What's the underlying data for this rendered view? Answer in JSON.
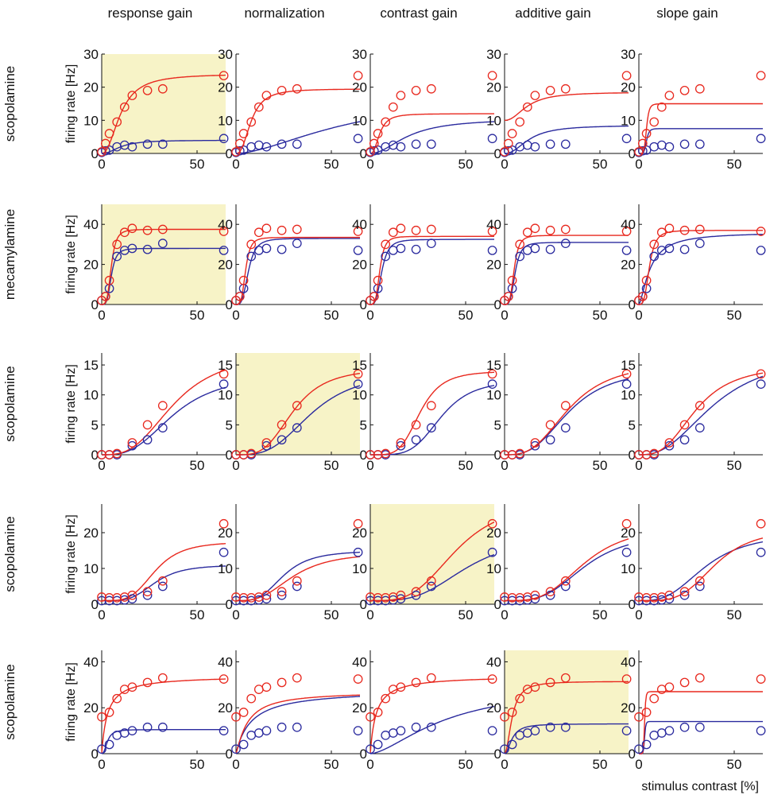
{
  "figure": {
    "column_titles": [
      "response gain",
      "normalization",
      "contrast gain",
      "additive gain",
      "slope gain"
    ],
    "row_labels": [
      "scopolamine",
      "mecamylamine",
      "scopolamine",
      "scopolamine",
      "scopolamine"
    ],
    "ylabel": "firing rate [Hz]",
    "xlabel": "stimulus contrast [%]",
    "colors": {
      "condition_a": "#e8281e",
      "condition_b": "#2a2a9e",
      "highlight": "#f7f3c7",
      "axis": "#111111"
    }
  },
  "chart_data": {
    "type": "scatter",
    "x_label": "stimulus contrast [%]",
    "y_label": "firing rate [Hz]",
    "xlim": [
      0,
      65
    ],
    "xticks": [
      0,
      50
    ],
    "x": [
      0,
      2,
      4,
      6,
      8,
      12,
      16,
      24,
      32,
      64
    ],
    "model_names": [
      "response gain",
      "normalization",
      "contrast gain",
      "additive gain",
      "slope gain"
    ],
    "rows": [
      {
        "label": "scopolamine",
        "ylim": [
          0,
          30
        ],
        "yticks": [
          0,
          10,
          20,
          30
        ],
        "best_model": 0,
        "points_a": [
          [
            0,
            0.5
          ],
          [
            2,
            3
          ],
          [
            4,
            6
          ],
          [
            8,
            9.5
          ],
          [
            12,
            14
          ],
          [
            16,
            17.5
          ],
          [
            24,
            19
          ],
          [
            32,
            19.5
          ],
          [
            64,
            23.5
          ]
        ],
        "points_b": [
          [
            0,
            0.3
          ],
          [
            2,
            0.8
          ],
          [
            4,
            1
          ],
          [
            8,
            2
          ],
          [
            12,
            2.5
          ],
          [
            16,
            2
          ],
          [
            24,
            2.8
          ],
          [
            32,
            2.8
          ],
          [
            64,
            4.5
          ]
        ],
        "fits": [
          {
            "a": [
              0,
              24,
              10,
              2.2
            ],
            "b": [
              0,
              4,
              10,
              2.2
            ]
          },
          {
            "a": [
              0,
              19.5,
              8,
              2.5
            ],
            "b": [
              0,
              18,
              60,
              1.7
            ]
          },
          {
            "a": [
              0,
              12,
              5,
              2.5
            ],
            "b": [
              0,
              10.5,
              20,
              2
            ]
          },
          {
            "a": [
              10,
              8.5,
              12,
              2.2
            ],
            "b": [
              0,
              8.5,
              13,
              2.2
            ]
          },
          {
            "a": [
              0,
              15,
              4,
              6
            ],
            "b": [
              0,
              7.5,
              4,
              6
            ]
          }
        ]
      },
      {
        "label": "mecamylamine",
        "ylim": [
          0,
          50
        ],
        "yticks": [
          0,
          20,
          40
        ],
        "best_model": 0,
        "points_a": [
          [
            0,
            2
          ],
          [
            2,
            4
          ],
          [
            4,
            12
          ],
          [
            8,
            30
          ],
          [
            12,
            36
          ],
          [
            16,
            38
          ],
          [
            24,
            37
          ],
          [
            32,
            37.5
          ],
          [
            64,
            36.5
          ]
        ],
        "points_b": [
          [
            0,
            2
          ],
          [
            2,
            4
          ],
          [
            4,
            8
          ],
          [
            8,
            24
          ],
          [
            12,
            27
          ],
          [
            16,
            28
          ],
          [
            24,
            27.5
          ],
          [
            32,
            30.5
          ],
          [
            64,
            27
          ]
        ],
        "fits": [
          {
            "a": [
              0,
              37.5,
              5,
              4
            ],
            "b": [
              0,
              28,
              5,
              4
            ]
          },
          {
            "a": [
              0,
              33.5,
              5,
              4
            ],
            "b": [
              0,
              33,
              6.5,
              3.5
            ]
          },
          {
            "a": [
              0,
              34,
              5,
              4
            ],
            "b": [
              0,
              32.5,
              6,
              3.5
            ]
          },
          {
            "a": [
              0,
              34.5,
              5,
              4
            ],
            "b": [
              0,
              31,
              5.5,
              3.8
            ]
          },
          {
            "a": [
              0,
              37,
              5.5,
              3.5
            ],
            "b": [
              0,
              36,
              6,
              1.5
            ]
          }
        ]
      },
      {
        "label": "scopolamine",
        "ylim": [
          0,
          17
        ],
        "yticks": [
          0,
          5,
          10,
          15
        ],
        "best_model": 1,
        "points_a": [
          [
            0,
            0
          ],
          [
            4,
            0
          ],
          [
            8,
            0.2
          ],
          [
            16,
            2
          ],
          [
            24,
            5
          ],
          [
            32,
            8.2
          ],
          [
            64,
            13.5
          ]
        ],
        "points_b": [
          [
            0,
            0
          ],
          [
            4,
            0
          ],
          [
            8,
            0
          ],
          [
            16,
            1.5
          ],
          [
            24,
            2.5
          ],
          [
            32,
            4.5
          ],
          [
            64,
            11.8
          ]
        ],
        "fits": [
          {
            "a": [
              0,
              17,
              38,
              3
            ],
            "b": [
              0,
              13.5,
              38,
              3
            ]
          },
          {
            "a": [
              0,
              14.5,
              30,
              3.5
            ],
            "b": [
              0,
              14,
              40,
              3.2
            ]
          },
          {
            "a": [
              0,
              14,
              26,
              4.5
            ],
            "b": [
              0,
              12.5,
              37,
              4.5
            ]
          },
          {
            "a": [
              0,
              15.5,
              34,
              3
            ],
            "b": [
              0,
              14.5,
              34,
              3
            ]
          },
          {
            "a": [
              0,
              15,
              30,
              3
            ],
            "b": [
              0,
              17,
              40,
              2.5
            ]
          }
        ]
      },
      {
        "label": "scopolamine",
        "ylim": [
          0,
          28
        ],
        "yticks": [
          0,
          10,
          20
        ],
        "best_model": 2,
        "points_a": [
          [
            0,
            2
          ],
          [
            4,
            1.8
          ],
          [
            8,
            1.8
          ],
          [
            12,
            2
          ],
          [
            16,
            2.5
          ],
          [
            24,
            3.5
          ],
          [
            32,
            6.5
          ],
          [
            64,
            22.5
          ]
        ],
        "points_b": [
          [
            0,
            1
          ],
          [
            4,
            1
          ],
          [
            8,
            1
          ],
          [
            12,
            1.2
          ],
          [
            16,
            1.5
          ],
          [
            24,
            2.5
          ],
          [
            32,
            5
          ],
          [
            64,
            14.5
          ]
        ],
        "fits": [
          {
            "a": [
              1,
              16.5,
              28,
              4
            ],
            "b": [
              1,
              10,
              28,
              4
            ]
          },
          {
            "a": [
              1,
              13.5,
              30,
              3
            ],
            "b": [
              1,
              14,
              25,
              3.5
            ]
          },
          {
            "a": [
              1,
              28,
              45,
              3.5
            ],
            "b": [
              1,
              18,
              50,
              3.5
            ]
          },
          {
            "a": [
              1,
              21,
              42,
              3.5
            ],
            "b": [
              1,
              19,
              42,
              3.5
            ]
          },
          {
            "a": [
              1,
              20,
              40,
              4
            ],
            "b": [
              1,
              19,
              35,
              3
            ]
          }
        ]
      },
      {
        "label": "scopolamine",
        "ylim": [
          0,
          45
        ],
        "yticks": [
          0,
          20,
          40
        ],
        "best_model": 3,
        "points_a": [
          [
            0,
            16
          ],
          [
            4,
            18
          ],
          [
            8,
            24
          ],
          [
            12,
            28
          ],
          [
            16,
            29
          ],
          [
            24,
            31
          ],
          [
            32,
            33
          ],
          [
            64,
            32.5
          ]
        ],
        "points_b": [
          [
            0,
            2
          ],
          [
            4,
            4
          ],
          [
            8,
            8
          ],
          [
            12,
            9
          ],
          [
            16,
            10
          ],
          [
            24,
            11.5
          ],
          [
            32,
            11.5
          ],
          [
            64,
            10
          ]
        ],
        "fits": [
          {
            "a": [
              0,
              34,
              3,
              1
            ],
            "b": [
              0,
              10.5,
              3,
              2.5
            ]
          },
          {
            "a": [
              0,
              27,
              6,
              1.2
            ],
            "b": [
              0,
              28,
              8,
              1
            ]
          },
          {
            "a": [
              0,
              34,
              3,
              1
            ],
            "b": [
              0,
              30,
              40,
              1.6
            ]
          },
          {
            "a": [
              0,
              31.5,
              4,
              2
            ],
            "b": [
              0,
              13,
              4,
              2
            ]
          },
          {
            "a": [
              0,
              27,
              3,
              10
            ],
            "b": [
              0,
              14,
              3,
              10
            ]
          }
        ]
      }
    ]
  }
}
